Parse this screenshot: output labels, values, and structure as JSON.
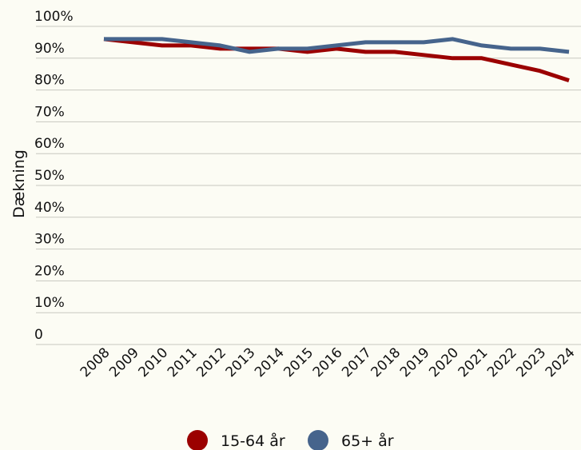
{
  "chart_data": {
    "type": "line",
    "y_label": "Dækning",
    "categories": [
      "2008",
      "2009",
      "2010",
      "2011",
      "2012",
      "2013",
      "2014",
      "2015",
      "2016",
      "2017",
      "2018",
      "2019",
      "2020",
      "2021",
      "2022",
      "2023",
      "2024"
    ],
    "series": [
      {
        "name": "15-64 år",
        "color": "#9b0000",
        "values": [
          96,
          95,
          94,
          94,
          93,
          93,
          93,
          92,
          93,
          92,
          92,
          91,
          90,
          90,
          88,
          86,
          83
        ]
      },
      {
        "name": "65+ år",
        "color": "#46648c",
        "values": [
          96,
          96,
          96,
          95,
          94,
          92,
          93,
          93,
          94,
          95,
          95,
          95,
          96,
          94,
          93,
          93,
          92
        ]
      }
    ],
    "ylim": [
      0,
      100
    ],
    "yticks": [
      0,
      {
        "value": 10,
        "label": "10%"
      },
      {
        "value": 20,
        "label": "20%"
      },
      {
        "value": 30,
        "label": "30%"
      },
      {
        "value": 40,
        "label": "40%"
      },
      {
        "value": 50,
        "label": "50%"
      },
      {
        "value": 60,
        "label": "60%"
      },
      {
        "value": 70,
        "label": "70%"
      },
      {
        "value": 80,
        "label": "80%"
      },
      {
        "value": 90,
        "label": "90%"
      },
      {
        "value": 100,
        "label": "100%"
      }
    ],
    "grid": true,
    "legend": "bottom"
  }
}
